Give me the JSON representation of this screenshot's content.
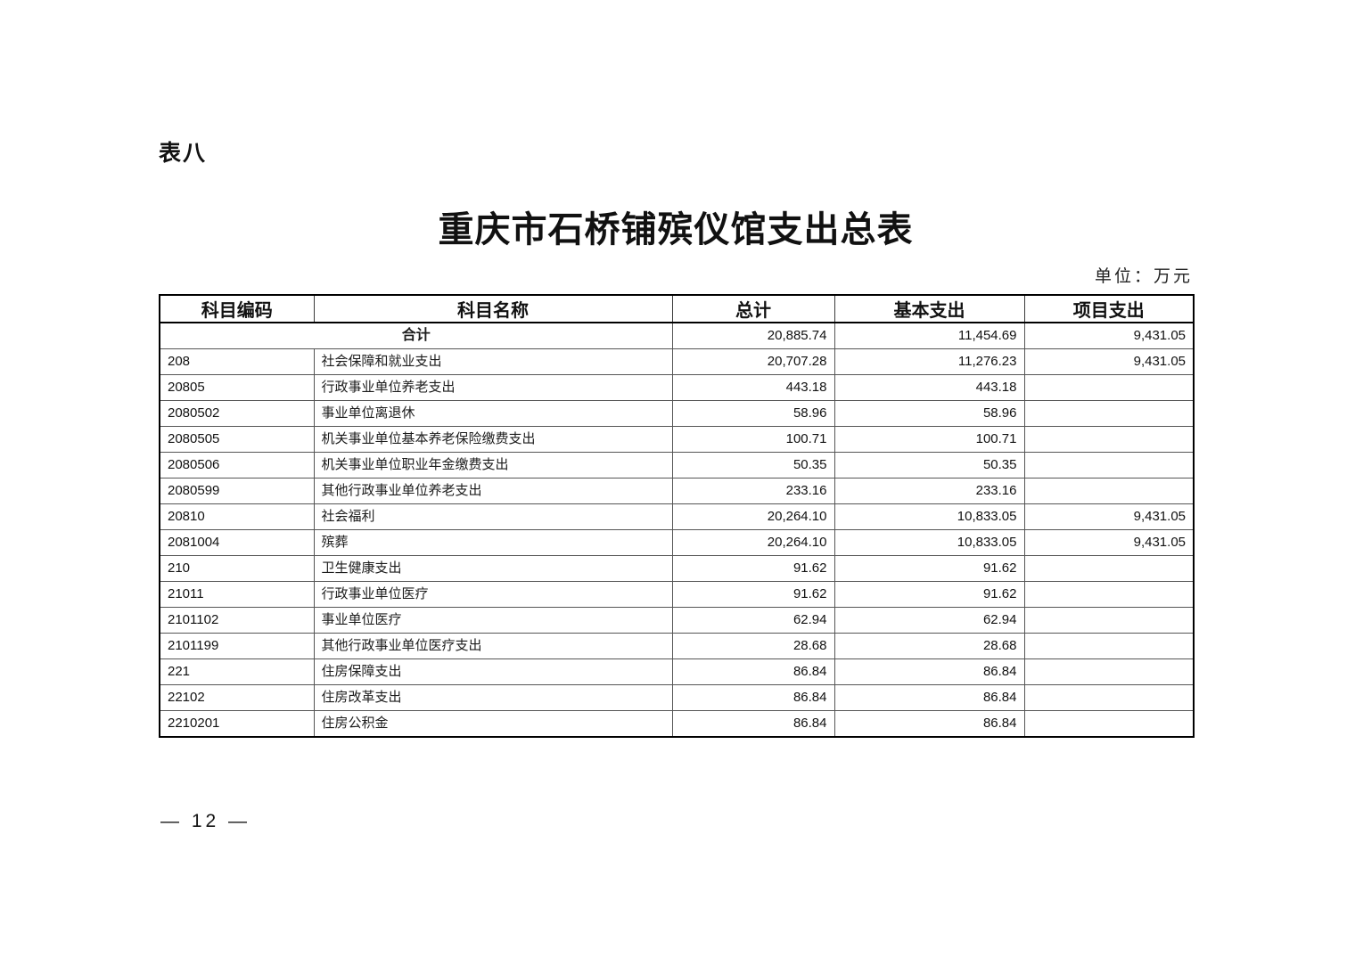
{
  "page": {
    "sheet_label": "表八",
    "title": "重庆市石桥铺殡仪馆支出总表",
    "unit_note": "单位：万元",
    "page_number": "—  12  —"
  },
  "table": {
    "headers": [
      "科目编码",
      "科目名称",
      "总计",
      "基本支出",
      "项目支出"
    ],
    "total_row": {
      "name": "合计",
      "total": "20,885.74",
      "basic": "11,454.69",
      "project": "9,431.05"
    },
    "rows": [
      {
        "code": "208",
        "name": "社会保障和就业支出",
        "total": "20,707.28",
        "basic": "11,276.23",
        "project": "9,431.05"
      },
      {
        "code": "20805",
        "name": "行政事业单位养老支出",
        "total": "443.18",
        "basic": "443.18",
        "project": ""
      },
      {
        "code": "2080502",
        "name": "事业单位离退休",
        "total": "58.96",
        "basic": "58.96",
        "project": ""
      },
      {
        "code": "2080505",
        "name": "机关事业单位基本养老保险缴费支出",
        "total": "100.71",
        "basic": "100.71",
        "project": ""
      },
      {
        "code": "2080506",
        "name": "机关事业单位职业年金缴费支出",
        "total": "50.35",
        "basic": "50.35",
        "project": ""
      },
      {
        "code": "2080599",
        "name": "其他行政事业单位养老支出",
        "total": "233.16",
        "basic": "233.16",
        "project": ""
      },
      {
        "code": "20810",
        "name": "社会福利",
        "total": "20,264.10",
        "basic": "10,833.05",
        "project": "9,431.05"
      },
      {
        "code": "2081004",
        "name": "殡葬",
        "total": "20,264.10",
        "basic": "10,833.05",
        "project": "9,431.05"
      },
      {
        "code": "210",
        "name": "卫生健康支出",
        "total": "91.62",
        "basic": "91.62",
        "project": ""
      },
      {
        "code": "21011",
        "name": "行政事业单位医疗",
        "total": "91.62",
        "basic": "91.62",
        "project": ""
      },
      {
        "code": "2101102",
        "name": "事业单位医疗",
        "total": "62.94",
        "basic": "62.94",
        "project": ""
      },
      {
        "code": "2101199",
        "name": "其他行政事业单位医疗支出",
        "total": "28.68",
        "basic": "28.68",
        "project": ""
      },
      {
        "code": "221",
        "name": "住房保障支出",
        "total": "86.84",
        "basic": "86.84",
        "project": ""
      },
      {
        "code": "22102",
        "name": "住房改革支出",
        "total": "86.84",
        "basic": "86.84",
        "project": ""
      },
      {
        "code": "2210201",
        "name": "住房公积金",
        "total": "86.84",
        "basic": "86.84",
        "project": ""
      }
    ]
  }
}
